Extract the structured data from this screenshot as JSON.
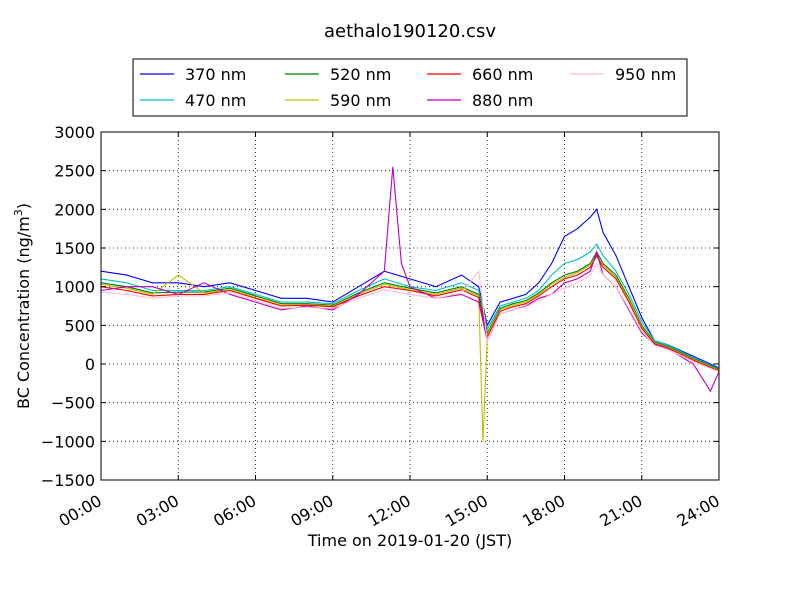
{
  "chart_data": {
    "type": "line",
    "title": "aethalo190120.csv",
    "xlabel": "Time on 2019-01-20 (JST)",
    "ylabel": "BC Concentration (ng/m³)",
    "ylabel_main": "BC Concentration (ng/m",
    "ylabel_sup": "3",
    "ylabel_tail": ")",
    "xlim": [
      "00:00",
      "24:00"
    ],
    "ylim": [
      -1500,
      3000
    ],
    "x_ticks": [
      "00:00",
      "03:00",
      "06:00",
      "09:00",
      "12:00",
      "15:00",
      "18:00",
      "21:00",
      "24:00"
    ],
    "y_ticks": [
      "3000",
      "2500",
      "2000",
      "1500",
      "1000",
      "500",
      "0",
      "−500",
      "−1000",
      "−1500"
    ],
    "y_tick_values": [
      3000,
      2500,
      2000,
      1500,
      1000,
      500,
      0,
      -500,
      -1000,
      -1500
    ],
    "grid": true,
    "legend_position": "top",
    "series": [
      {
        "name": "370 nm",
        "color": "#0000ff",
        "x": [
          "00:00",
          "01:00",
          "02:00",
          "03:00",
          "04:00",
          "05:00",
          "06:00",
          "07:00",
          "08:00",
          "09:00",
          "10:00",
          "11:00",
          "12:00",
          "13:00",
          "14:00",
          "14:40",
          "15:00",
          "15:30",
          "16:00",
          "16:30",
          "17:00",
          "17:30",
          "18:00",
          "18:30",
          "19:00",
          "19:15",
          "19:30",
          "20:00",
          "20:30",
          "21:00",
          "21:30",
          "22:00",
          "23:00",
          "24:00"
        ],
        "y": [
          1200,
          1150,
          1050,
          1050,
          1000,
          1050,
          950,
          850,
          850,
          800,
          1000,
          1200,
          1100,
          1000,
          1150,
          1000,
          500,
          800,
          850,
          900,
          1050,
          1300,
          1650,
          1750,
          1900,
          2000,
          1700,
          1400,
          1000,
          600,
          300,
          250,
          100,
          -50
        ]
      },
      {
        "name": "470 nm",
        "color": "#00bfbf",
        "x": [
          "00:00",
          "01:00",
          "02:00",
          "03:00",
          "04:00",
          "05:00",
          "06:00",
          "07:00",
          "08:00",
          "09:00",
          "10:00",
          "11:00",
          "12:00",
          "13:00",
          "14:00",
          "14:40",
          "15:00",
          "15:30",
          "16:00",
          "16:30",
          "17:00",
          "17:30",
          "18:00",
          "18:30",
          "19:00",
          "19:15",
          "19:30",
          "20:00",
          "20:30",
          "21:00",
          "21:30",
          "22:00",
          "23:00",
          "24:00"
        ],
        "y": [
          1100,
          1050,
          950,
          950,
          950,
          1000,
          900,
          800,
          800,
          780,
          950,
          1100,
          1000,
          950,
          1050,
          950,
          450,
          750,
          800,
          850,
          950,
          1150,
          1300,
          1350,
          1450,
          1550,
          1400,
          1200,
          900,
          550,
          300,
          250,
          80,
          -60
        ]
      },
      {
        "name": "520 nm",
        "color": "#008000",
        "x": [
          "00:00",
          "01:00",
          "02:00",
          "03:00",
          "04:00",
          "05:00",
          "06:00",
          "07:00",
          "08:00",
          "09:00",
          "10:00",
          "11:00",
          "12:00",
          "13:00",
          "14:00",
          "14:40",
          "15:00",
          "15:30",
          "16:00",
          "16:30",
          "17:00",
          "17:30",
          "18:00",
          "18:30",
          "19:00",
          "19:15",
          "19:30",
          "20:00",
          "20:30",
          "21:00",
          "21:30",
          "22:00",
          "23:00",
          "24:00"
        ],
        "y": [
          1050,
          1000,
          920,
          930,
          930,
          980,
          880,
          780,
          780,
          760,
          920,
          1050,
          980,
          920,
          1000,
          900,
          400,
          720,
          780,
          820,
          920,
          1050,
          1150,
          1200,
          1300,
          1450,
          1300,
          1150,
          850,
          500,
          280,
          230,
          70,
          -70
        ]
      },
      {
        "name": "590 nm",
        "color": "#bfbf00",
        "x": [
          "00:00",
          "01:00",
          "02:00",
          "03:00",
          "04:00",
          "05:00",
          "06:00",
          "07:00",
          "08:00",
          "09:00",
          "10:00",
          "11:00",
          "12:00",
          "13:00",
          "14:00",
          "14:40",
          "14:50",
          "15:00",
          "15:30",
          "16:00",
          "16:30",
          "17:00",
          "17:30",
          "18:00",
          "18:30",
          "19:00",
          "19:15",
          "19:30",
          "20:00",
          "20:30",
          "21:00",
          "21:30",
          "22:00",
          "23:00",
          "24:00"
        ],
        "y": [
          1030,
          980,
          900,
          1150,
          920,
          960,
          860,
          760,
          770,
          750,
          900,
          1030,
          960,
          900,
          980,
          880,
          -1000,
          380,
          700,
          760,
          800,
          900,
          1030,
          1120,
          1180,
          1280,
          1420,
          1280,
          1120,
          830,
          480,
          270,
          220,
          60,
          -80
        ]
      },
      {
        "name": "660 nm",
        "color": "#ff0000",
        "x": [
          "00:00",
          "01:00",
          "02:00",
          "03:00",
          "04:00",
          "05:00",
          "06:00",
          "07:00",
          "08:00",
          "09:00",
          "10:00",
          "11:00",
          "12:00",
          "13:00",
          "14:00",
          "14:40",
          "15:00",
          "15:30",
          "16:00",
          "16:30",
          "17:00",
          "17:30",
          "18:00",
          "18:30",
          "19:00",
          "19:15",
          "19:30",
          "20:00",
          "20:30",
          "21:00",
          "21:30",
          "22:00",
          "23:00",
          "24:00"
        ],
        "y": [
          1000,
          950,
          880,
          900,
          900,
          950,
          850,
          750,
          760,
          740,
          880,
          1000,
          950,
          880,
          960,
          860,
          350,
          680,
          740,
          780,
          880,
          1000,
          1100,
          1150,
          1250,
          1400,
          1250,
          1100,
          800,
          460,
          260,
          210,
          50,
          -90
        ]
      },
      {
        "name": "880 nm",
        "color": "#bf00bf",
        "x": [
          "00:00",
          "01:00",
          "02:00",
          "03:00",
          "04:00",
          "05:00",
          "06:00",
          "07:00",
          "08:00",
          "09:00",
          "10:00",
          "11:00",
          "11:20",
          "11:40",
          "12:00",
          "13:00",
          "14:00",
          "14:40",
          "15:00",
          "15:30",
          "16:00",
          "16:30",
          "17:00",
          "17:30",
          "18:00",
          "18:30",
          "19:00",
          "19:15",
          "19:30",
          "20:00",
          "20:30",
          "21:00",
          "21:30",
          "22:00",
          "23:00",
          "23:40",
          "24:00"
        ],
        "y": [
          950,
          1000,
          1000,
          900,
          1050,
          900,
          800,
          700,
          750,
          700,
          900,
          1200,
          2550,
          1300,
          1000,
          850,
          900,
          800,
          300,
          650,
          700,
          750,
          850,
          900,
          1050,
          1100,
          1200,
          1450,
          1150,
          1000,
          700,
          400,
          250,
          200,
          0,
          -350,
          -100
        ]
      },
      {
        "name": "950 nm",
        "color": "#ffc0cb",
        "x": [
          "00:00",
          "01:00",
          "02:00",
          "03:00",
          "04:00",
          "05:00",
          "06:00",
          "07:00",
          "08:00",
          "09:00",
          "10:00",
          "11:00",
          "12:00",
          "13:00",
          "14:00",
          "14:40",
          "15:00",
          "15:30",
          "16:00",
          "16:30",
          "17:00",
          "17:30",
          "18:00",
          "18:30",
          "19:00",
          "19:15",
          "19:30",
          "20:00",
          "20:30",
          "21:00",
          "21:30",
          "22:00",
          "23:00",
          "24:00"
        ],
        "y": [
          930,
          900,
          850,
          880,
          880,
          920,
          820,
          720,
          730,
          720,
          850,
          960,
          900,
          850,
          920,
          1200,
          300,
          650,
          700,
          740,
          820,
          900,
          980,
          1050,
          1150,
          1300,
          1150,
          1000,
          720,
          420,
          240,
          190,
          30,
          -100
        ]
      }
    ]
  }
}
